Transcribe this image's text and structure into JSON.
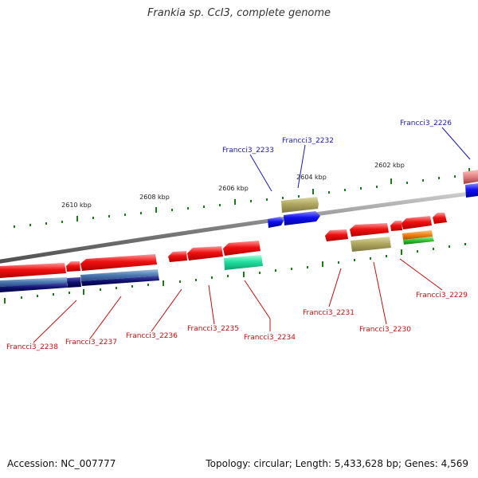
{
  "title": "Frankia sp. CcI3, complete genome",
  "accession_text": "Accession: NC_007777",
  "summary_text": "Topology: circular; Length: 5,433,628 bp; Genes: 4,569",
  "ticks": {
    "t2610": "2610 kbp",
    "t2608": "2608 kbp",
    "t2606": "2606 kbp",
    "t2604": "2604 kbp",
    "t2602": "2602 kbp"
  },
  "genes": {
    "g2226": "Francci3_2226",
    "g2229": "Francci3_2229",
    "g2230": "Francci3_2230",
    "g2231": "Francci3_2231",
    "g2232": "Francci3_2232",
    "g2233": "Francci3_2233",
    "g2234": "Francci3_2234",
    "g2235": "Francci3_2235",
    "g2236": "Francci3_2236",
    "g2237": "Francci3_2237",
    "g2238": "Francci3_2238"
  },
  "colors": {
    "backbone": "#888888",
    "gene_red": "#e81010",
    "gene_blue": "#1010e8",
    "gene_olive": "#b0a860",
    "gene_teal": "#20e0a0",
    "gene_orange": "#f08010",
    "gene_green": "#30c030",
    "gene_navy": "#101070",
    "gene_steel": "#4a78b0",
    "tick_green": "#1a7a1a",
    "label_blue": "#1a1ab0",
    "label_red": "#c01010"
  }
}
